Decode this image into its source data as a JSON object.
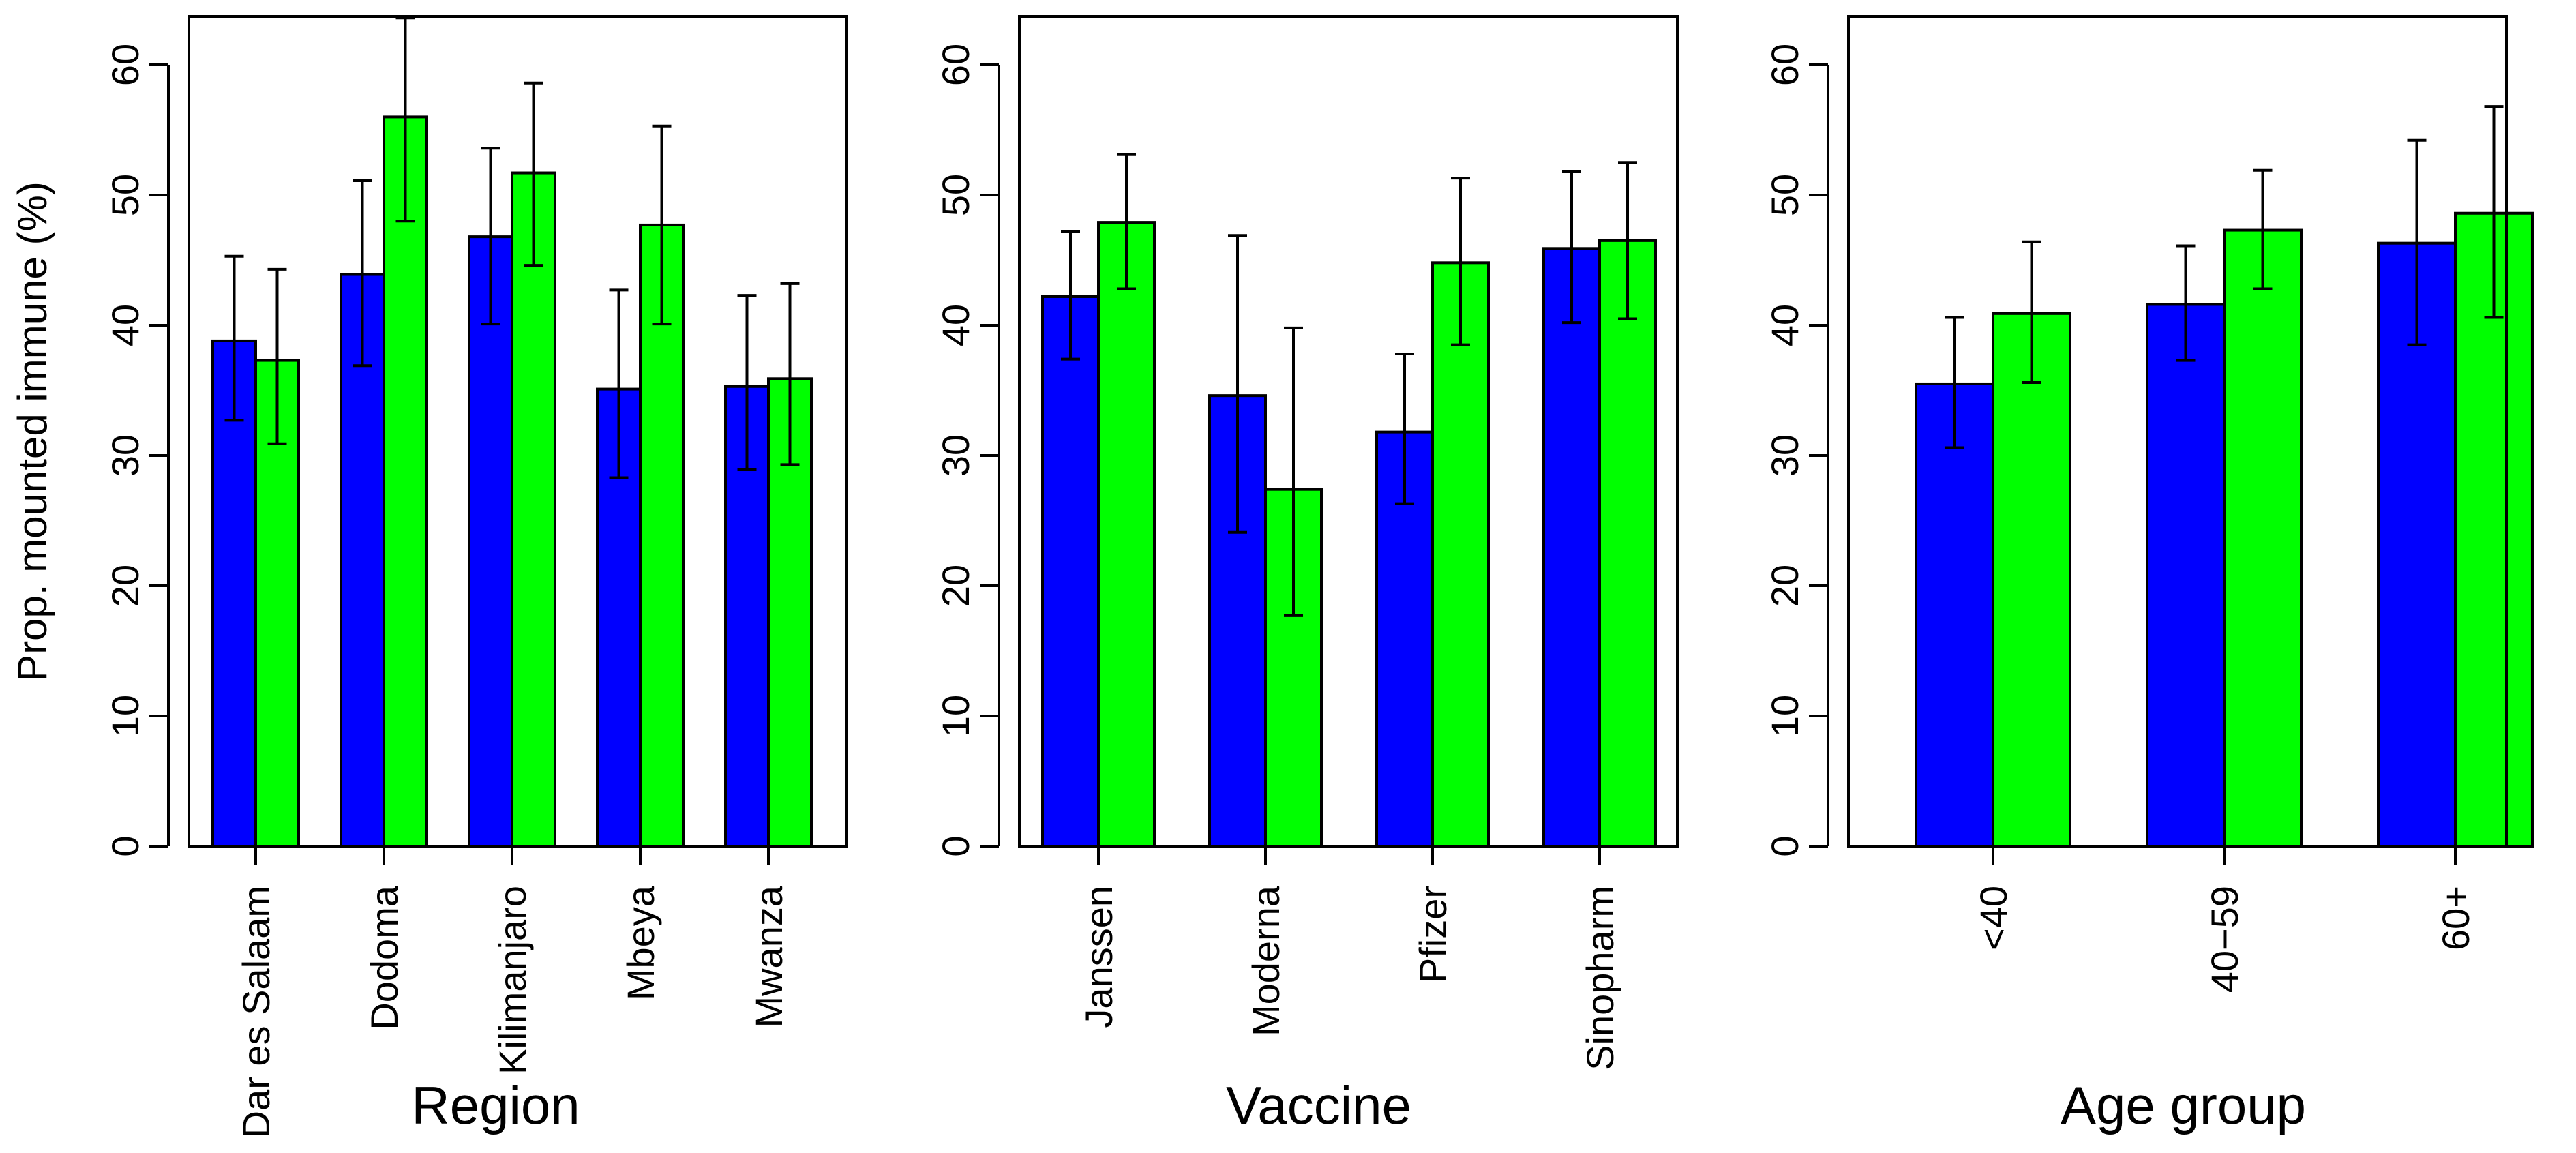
{
  "chart_data": [
    {
      "type": "bar",
      "panel": "region",
      "xlabel": "Region",
      "ylabel": "Prop. mounted immune (%)",
      "ylim": [
        0,
        65
      ],
      "yticks": [
        0,
        10,
        20,
        30,
        40,
        50,
        60
      ],
      "categories": [
        "Dar es Salaam",
        "Dodoma",
        "Kilimanjaro",
        "Mbeya",
        "Mwanza"
      ],
      "series": [
        {
          "name": "blue",
          "color": "#0000FF",
          "values": [
            38.8,
            43.9,
            46.8,
            35.1,
            35.3
          ],
          "lower": [
            32.7,
            36.9,
            40.1,
            28.3,
            28.9
          ],
          "upper": [
            45.3,
            51.1,
            53.6,
            42.7,
            42.3
          ]
        },
        {
          "name": "green",
          "color": "#00FF00",
          "values": [
            37.3,
            56.0,
            51.7,
            47.7,
            35.9
          ],
          "lower": [
            30.9,
            48.0,
            44.6,
            40.1,
            29.3
          ],
          "upper": [
            44.3,
            63.6,
            58.6,
            55.3,
            43.2
          ]
        }
      ]
    },
    {
      "type": "bar",
      "panel": "vaccine",
      "xlabel": "Vaccine",
      "ylabel": "",
      "ylim": [
        0,
        65
      ],
      "yticks": [
        0,
        10,
        20,
        30,
        40,
        50,
        60
      ],
      "categories": [
        "Janssen",
        "Moderna",
        "Pfizer",
        "Sinopharm"
      ],
      "series": [
        {
          "name": "blue",
          "color": "#0000FF",
          "values": [
            42.2,
            34.6,
            31.8,
            45.9
          ],
          "lower": [
            37.4,
            24.1,
            26.3,
            40.2
          ],
          "upper": [
            47.2,
            46.9,
            37.8,
            51.8
          ]
        },
        {
          "name": "green",
          "color": "#00FF00",
          "values": [
            47.9,
            27.4,
            44.8,
            46.5
          ],
          "lower": [
            42.8,
            17.7,
            38.5,
            40.5
          ],
          "upper": [
            53.1,
            39.8,
            51.3,
            52.5
          ]
        }
      ]
    },
    {
      "type": "bar",
      "panel": "age",
      "xlabel": "Age group",
      "ylabel": "",
      "ylim": [
        0,
        65
      ],
      "yticks": [
        0,
        10,
        20,
        30,
        40,
        50,
        60
      ],
      "categories": [
        "<40",
        "40−59",
        "60+"
      ],
      "series": [
        {
          "name": "blue",
          "color": "#0000FF",
          "values": [
            35.5,
            41.6,
            46.3
          ],
          "lower": [
            30.6,
            37.3,
            38.5
          ],
          "upper": [
            40.6,
            46.1,
            54.2
          ]
        },
        {
          "name": "green",
          "color": "#00FF00",
          "values": [
            40.9,
            47.3,
            48.6
          ],
          "lower": [
            35.6,
            42.8,
            40.6
          ],
          "upper": [
            46.4,
            51.9,
            56.8
          ]
        }
      ]
    }
  ]
}
